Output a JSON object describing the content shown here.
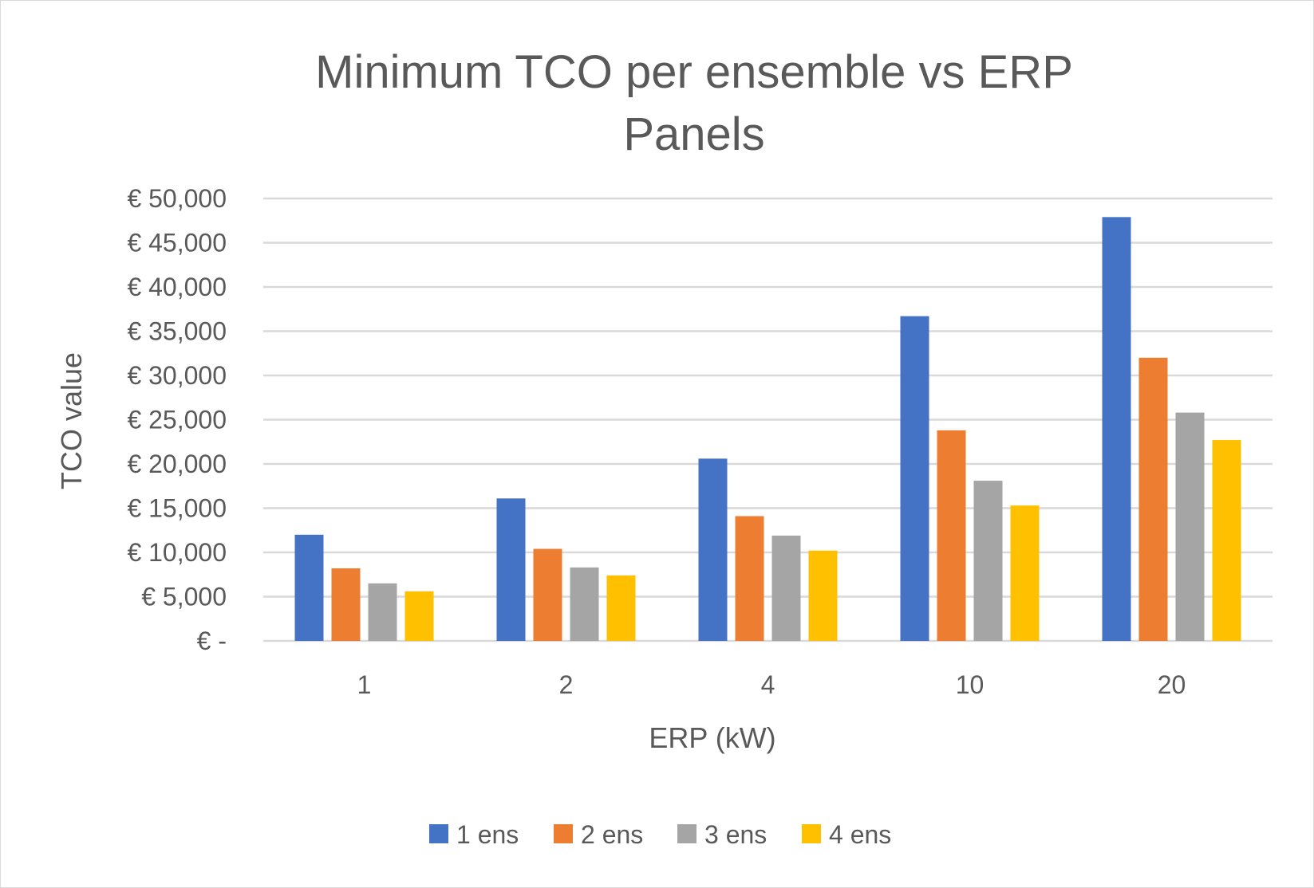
{
  "chart_data": {
    "type": "bar",
    "title_line1": "Minimum TCO per ensemble vs ERP",
    "title_line2": "Panels",
    "xlabel": "ERP (kW)",
    "ylabel": "TCO value",
    "categories": [
      "1",
      "2",
      "4",
      "10",
      "20"
    ],
    "ylim": [
      0,
      50000
    ],
    "yticks": [
      0,
      5000,
      10000,
      15000,
      20000,
      25000,
      30000,
      35000,
      40000,
      45000,
      50000
    ],
    "ytick_labels": [
      "€ -",
      "€ 5,000",
      "€ 10,000",
      "€ 15,000",
      "€ 20,000",
      "€ 25,000",
      "€ 30,000",
      "€ 35,000",
      "€ 40,000",
      "€ 45,000",
      "€ 50,000"
    ],
    "grid": true,
    "legend_position": "bottom",
    "series": [
      {
        "name": "1 ens",
        "color": "#4472C4",
        "values": [
          12000,
          16100,
          20600,
          36700,
          47900
        ]
      },
      {
        "name": "2 ens",
        "color": "#ED7D31",
        "values": [
          8200,
          10400,
          14100,
          23800,
          32000
        ]
      },
      {
        "name": "3 ens",
        "color": "#A5A5A5",
        "values": [
          6500,
          8300,
          11900,
          18100,
          25800
        ]
      },
      {
        "name": "4 ens",
        "color": "#FFC000",
        "values": [
          5600,
          7400,
          10200,
          15300,
          22700
        ]
      }
    ]
  }
}
